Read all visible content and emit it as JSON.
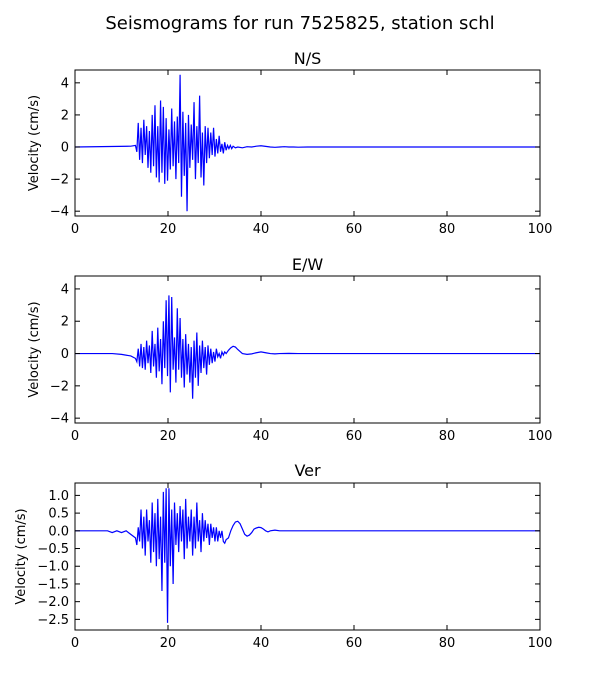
{
  "figure": {
    "title": "Seismograms for run 7525825, station schl"
  },
  "chart_data": [
    {
      "type": "line",
      "title": "N/S",
      "xlabel": "",
      "ylabel": "Velocity (cm/s)",
      "xlim": [
        0,
        100
      ],
      "ylim": [
        -4.3,
        4.8
      ],
      "xticks": [
        0,
        20,
        40,
        60,
        80,
        100
      ],
      "yticks": [
        -4,
        -2,
        0,
        2,
        4
      ],
      "ytick_labels": [
        "−4",
        "−2",
        "0",
        "2",
        "4"
      ],
      "color": "#0000ff",
      "x": [
        0,
        12,
        13.0,
        13.3,
        13.6,
        13.9,
        14.2,
        14.5,
        14.8,
        15.1,
        15.4,
        15.7,
        16.0,
        16.3,
        16.6,
        16.9,
        17.2,
        17.5,
        17.8,
        18.1,
        18.4,
        18.7,
        19.0,
        19.3,
        19.6,
        19.9,
        20.2,
        20.5,
        20.8,
        21.1,
        21.4,
        21.7,
        22.0,
        22.3,
        22.6,
        22.9,
        23.2,
        23.5,
        23.8,
        24.1,
        24.4,
        24.7,
        25.0,
        25.3,
        25.6,
        25.9,
        26.2,
        26.5,
        26.8,
        27.1,
        27.4,
        27.7,
        28.0,
        28.3,
        28.6,
        28.9,
        29.2,
        29.5,
        29.8,
        30.1,
        30.4,
        30.7,
        31.0,
        31.3,
        31.6,
        31.9,
        32.2,
        32.5,
        32.8,
        33.1,
        33.4,
        33.7,
        34.0,
        34.5,
        35,
        36,
        37,
        38,
        39,
        40,
        41,
        42,
        43,
        44,
        45,
        46,
        47,
        48,
        50,
        60,
        70,
        80,
        90,
        100
      ],
      "y": [
        0,
        0.05,
        0.1,
        -0.3,
        1.5,
        -0.8,
        1.2,
        -1.0,
        1.7,
        -0.5,
        1.3,
        -1.3,
        1.0,
        -1.6,
        2.0,
        -1.2,
        2.6,
        -1.9,
        1.3,
        -2.2,
        2.9,
        -1.6,
        2.5,
        -2.3,
        1.8,
        -2.1,
        1.1,
        -1.4,
        2.4,
        -1.2,
        1.6,
        -2.0,
        1.9,
        -1.0,
        4.5,
        -3.1,
        2.2,
        -1.8,
        1.5,
        -4.0,
        2.0,
        -1.3,
        1.4,
        -0.8,
        2.8,
        -2.0,
        1.3,
        -1.0,
        3.2,
        -1.9,
        0.9,
        -2.4,
        1.3,
        -1.0,
        1.2,
        -0.7,
        0.9,
        -0.5,
        1.2,
        -0.6,
        0.5,
        -0.4,
        0.7,
        -0.3,
        0.2,
        -0.4,
        0.3,
        -0.2,
        0.1,
        -0.1,
        0.1,
        -0.1,
        0.05,
        -0.05,
        0.0,
        -0.05,
        0.02,
        0.0,
        0.05,
        0.08,
        0.04,
        0.0,
        -0.02,
        0.0,
        0.02,
        0.0,
        0.0,
        -0.01,
        0,
        0,
        0,
        0,
        0,
        0
      ]
    },
    {
      "type": "line",
      "title": "E/W",
      "xlabel": "",
      "ylabel": "Velocity (cm/s)",
      "xlim": [
        0,
        100
      ],
      "ylim": [
        -4.3,
        4.8
      ],
      "xticks": [
        0,
        20,
        40,
        60,
        80,
        100
      ],
      "yticks": [
        -4,
        -2,
        0,
        2,
        4
      ],
      "ytick_labels": [
        "−4",
        "−2",
        "0",
        "2",
        "4"
      ],
      "color": "#0000ff",
      "x": [
        0,
        8,
        10,
        12,
        13.0,
        13.3,
        13.6,
        13.9,
        14.2,
        14.5,
        14.8,
        15.1,
        15.4,
        15.7,
        16.0,
        16.3,
        16.6,
        16.9,
        17.2,
        17.5,
        17.8,
        18.1,
        18.4,
        18.7,
        19.0,
        19.3,
        19.6,
        19.9,
        20.2,
        20.5,
        20.8,
        21.1,
        21.4,
        21.7,
        22.0,
        22.3,
        22.6,
        22.9,
        23.2,
        23.5,
        23.8,
        24.1,
        24.4,
        24.7,
        25.0,
        25.3,
        25.6,
        25.9,
        26.2,
        26.5,
        26.8,
        27.1,
        27.4,
        27.7,
        28.0,
        28.3,
        28.6,
        28.9,
        29.2,
        29.5,
        29.8,
        30.1,
        30.4,
        30.7,
        31.0,
        31.3,
        31.6,
        31.9,
        32.2,
        32.5,
        33.0,
        33.5,
        34.0,
        34.5,
        35,
        36,
        37,
        38,
        39,
        40,
        41,
        42,
        43,
        44,
        46,
        48,
        50,
        60,
        70,
        80,
        90,
        100
      ],
      "y": [
        0,
        0,
        -0.05,
        -0.15,
        -0.3,
        -0.5,
        0.3,
        -0.8,
        0.6,
        -0.9,
        0.4,
        -1.0,
        0.8,
        -0.6,
        0.5,
        -1.2,
        1.4,
        -0.8,
        0.6,
        -1.5,
        1.6,
        -1.1,
        0.9,
        -1.9,
        2.0,
        -0.9,
        3.3,
        -1.4,
        3.6,
        -2.4,
        3.5,
        -1.0,
        1.0,
        -1.8,
        2.8,
        -1.0,
        2.2,
        -1.5,
        0.9,
        -2.1,
        1.2,
        -1.3,
        0.6,
        -1.8,
        0.4,
        -2.8,
        0.8,
        -1.5,
        1.3,
        -2.0,
        0.5,
        -1.2,
        0.8,
        -0.9,
        0.4,
        -1.3,
        0.5,
        -0.7,
        0.3,
        -0.6,
        0.1,
        -0.5,
        0.3,
        -0.2,
        0.0,
        -0.3,
        0.1,
        -0.1,
        0.1,
        0.0,
        0.2,
        0.35,
        0.45,
        0.4,
        0.25,
        0.0,
        -0.05,
        -0.02,
        0.05,
        0.1,
        0.05,
        0.0,
        -0.02,
        0.0,
        0.01,
        0.0,
        0,
        0,
        0,
        0,
        0,
        0
      ]
    },
    {
      "type": "line",
      "title": "Ver",
      "xlabel": "",
      "ylabel": "Velocity (cm/s)",
      "xlim": [
        0,
        100
      ],
      "ylim": [
        -2.8,
        1.35
      ],
      "xticks": [
        0,
        20,
        40,
        60,
        80,
        100
      ],
      "yticks": [
        -2.5,
        -2.0,
        -1.5,
        -1.0,
        -0.5,
        0.0,
        0.5,
        1.0
      ],
      "ytick_labels": [
        "−2.5",
        "−2.0",
        "−1.5",
        "−1.0",
        "−0.5",
        "0.0",
        "0.5",
        "1.0"
      ],
      "color": "#0000ff",
      "x": [
        0,
        7,
        8,
        9,
        10,
        11,
        12,
        13.0,
        13.3,
        13.6,
        13.9,
        14.2,
        14.5,
        14.8,
        15.1,
        15.4,
        15.7,
        16.0,
        16.3,
        16.6,
        16.9,
        17.2,
        17.5,
        17.8,
        18.1,
        18.4,
        18.7,
        19.0,
        19.3,
        19.6,
        19.9,
        20.2,
        20.5,
        20.8,
        21.1,
        21.4,
        21.7,
        22.0,
        22.3,
        22.6,
        22.9,
        23.2,
        23.5,
        23.8,
        24.1,
        24.4,
        24.7,
        25.0,
        25.3,
        25.6,
        25.9,
        26.2,
        26.5,
        26.8,
        27.1,
        27.4,
        27.7,
        28.0,
        28.3,
        28.6,
        28.9,
        29.2,
        29.5,
        29.8,
        30.1,
        30.4,
        30.7,
        31.0,
        31.3,
        31.6,
        31.9,
        32.2,
        32.5,
        33,
        33.5,
        34,
        34.5,
        35,
        35.5,
        36,
        36.5,
        37,
        37.5,
        38,
        38.5,
        39,
        39.5,
        40,
        40.5,
        41,
        41.5,
        42,
        43,
        44,
        46,
        48,
        50,
        60,
        70,
        80,
        90,
        100
      ],
      "y": [
        0,
        0,
        -0.05,
        0.0,
        -0.05,
        0.0,
        -0.1,
        -0.2,
        -0.4,
        0.1,
        -0.3,
        0.6,
        -0.5,
        0.4,
        -0.7,
        0.6,
        -0.3,
        0.3,
        -0.9,
        0.8,
        -0.6,
        0.5,
        -1.0,
        0.9,
        -0.8,
        0.4,
        -1.7,
        1.1,
        -0.9,
        1.2,
        -2.6,
        1.2,
        -1.0,
        0.6,
        -1.5,
        0.8,
        -0.4,
        0.5,
        -0.6,
        0.7,
        -0.3,
        0.6,
        -0.8,
        0.9,
        -0.5,
        0.4,
        -0.3,
        0.6,
        -0.7,
        0.4,
        -0.5,
        0.8,
        -0.3,
        0.3,
        -0.6,
        0.5,
        -0.3,
        0.3,
        -0.2,
        0.2,
        -0.4,
        0.2,
        -0.2,
        0.1,
        -0.3,
        0.1,
        -0.3,
        0.0,
        -0.2,
        0.0,
        -0.3,
        -0.35,
        -0.25,
        -0.2,
        0.0,
        0.15,
        0.25,
        0.27,
        0.2,
        0.05,
        -0.1,
        -0.15,
        -0.12,
        -0.05,
        0.05,
        0.08,
        0.1,
        0.09,
        0.05,
        0.0,
        -0.03,
        0.0,
        0.02,
        0.0,
        0.0,
        0.0,
        0,
        0,
        0,
        0,
        0,
        0
      ]
    }
  ]
}
